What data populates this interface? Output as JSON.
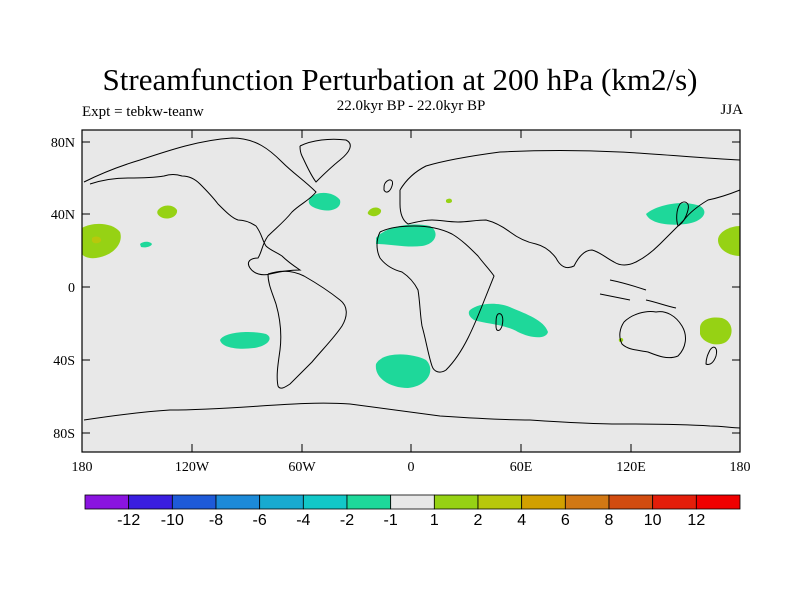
{
  "title": "Streamfunction Perturbation at 200 hPa (km2/s)",
  "subtitle": "22.0kyr BP - 22.0kyr BP",
  "left_label": "Expt = tebkw-teanw",
  "right_label": "JJA",
  "lat_ticks": [
    "80N",
    "40N",
    "0",
    "40S",
    "80S"
  ],
  "lon_ticks": [
    "180",
    "120W",
    "60W",
    "0",
    "60E",
    "120E",
    "180"
  ],
  "colorbar": {
    "labels": [
      "-12",
      "-10",
      "-8",
      "-6",
      "-4",
      "-2",
      "-1",
      "1",
      "2",
      "4",
      "6",
      "8",
      "10",
      "12"
    ],
    "colors": [
      "#8a14e0",
      "#3a1ee0",
      "#1e5ad8",
      "#1c8ad8",
      "#18aad0",
      "#12c8c8",
      "#1ed89a",
      "#e8e8e8",
      "#96d214",
      "#b8c80c",
      "#d2a000",
      "#d27814",
      "#d24c10",
      "#e41e0a",
      "#f00000"
    ]
  },
  "colors": {
    "land_bg": "#e8e8e8",
    "neg_small": "#1ed89a",
    "pos_small": "#96d214",
    "coast": "#000000"
  }
}
